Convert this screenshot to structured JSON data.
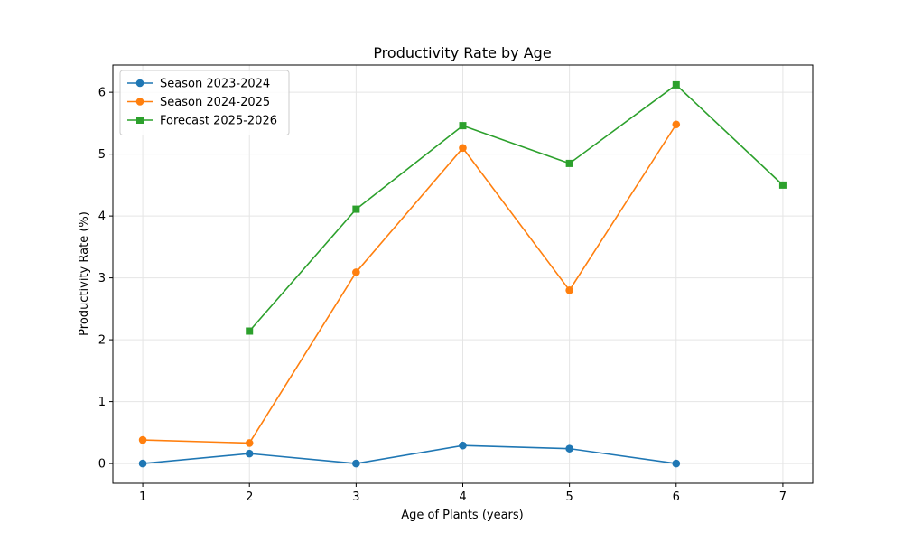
{
  "chart_data": {
    "type": "line",
    "title": "Productivity Rate by Age",
    "xlabel": "Age of Plants (years)",
    "ylabel": "Productivity Rate (%)",
    "xlim": [
      0.72,
      7.28
    ],
    "ylim": [
      -0.32,
      6.44
    ],
    "xticks": [
      1,
      2,
      3,
      4,
      5,
      6,
      7
    ],
    "yticks": [
      0,
      1,
      2,
      3,
      4,
      5,
      6
    ],
    "grid": true,
    "legend_position": "top-left",
    "series": [
      {
        "name": "Season 2023-2024",
        "color": "#1f77b4",
        "marker": "circle",
        "x": [
          1,
          2,
          3,
          4,
          5,
          6
        ],
        "y": [
          0.0,
          0.16,
          0.0,
          0.29,
          0.24,
          0.0
        ]
      },
      {
        "name": "Season 2024-2025",
        "color": "#ff7f0e",
        "marker": "circle",
        "x": [
          1,
          2,
          3,
          4,
          5,
          6
        ],
        "y": [
          0.38,
          0.33,
          3.09,
          5.1,
          2.8,
          5.48
        ]
      },
      {
        "name": "Forecast 2025-2026",
        "color": "#2ca02c",
        "marker": "square",
        "x": [
          2,
          3,
          4,
          5,
          6,
          7
        ],
        "y": [
          2.14,
          4.11,
          5.46,
          4.85,
          6.12,
          4.5
        ]
      }
    ]
  }
}
